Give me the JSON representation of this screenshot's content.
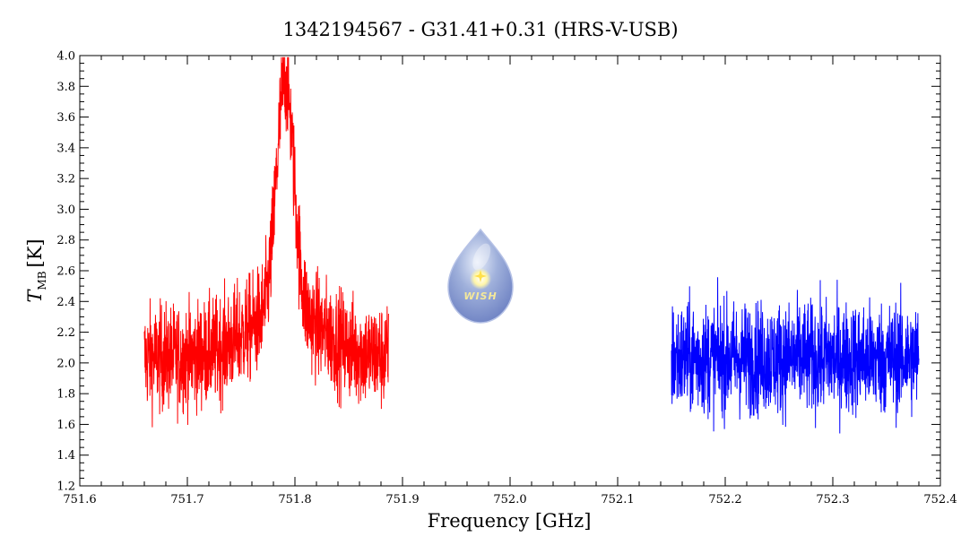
{
  "chart_data": {
    "type": "line",
    "title": "1342194567 - G31.41+0.31 (HRS-V-USB)",
    "xlabel": "Frequency [GHz]",
    "ylabel_main": "T",
    "ylabel_sub": "MB",
    "ylabel_unit": "[K]",
    "xlim": [
      751.6,
      752.4
    ],
    "ylim": [
      1.2,
      4.0
    ],
    "x_ticks": [
      "751.6",
      "751.7",
      "751.8",
      "751.9",
      "752.0",
      "752.1",
      "752.2",
      "752.3",
      "752.4"
    ],
    "y_ticks": [
      "1.2",
      "1.4",
      "1.6",
      "1.8",
      "2.0",
      "2.2",
      "2.4",
      "2.6",
      "2.8",
      "3.0",
      "3.2",
      "3.4",
      "3.6",
      "3.8",
      "4.0"
    ],
    "grid": false,
    "logo_text": "WISH",
    "series": [
      {
        "color": "#ff0000",
        "x_range": [
          751.66,
          751.887
        ],
        "baseline": 2.03,
        "noise": 0.17,
        "line_center": 751.791,
        "line_peak": 3.85,
        "line_width": 0.008,
        "wing_peak": 0.3,
        "wing_width": 0.035
      },
      {
        "color": "#0000ff",
        "x_range": [
          752.15,
          752.38
        ],
        "baseline": 2.03,
        "noise": 0.18
      }
    ]
  }
}
